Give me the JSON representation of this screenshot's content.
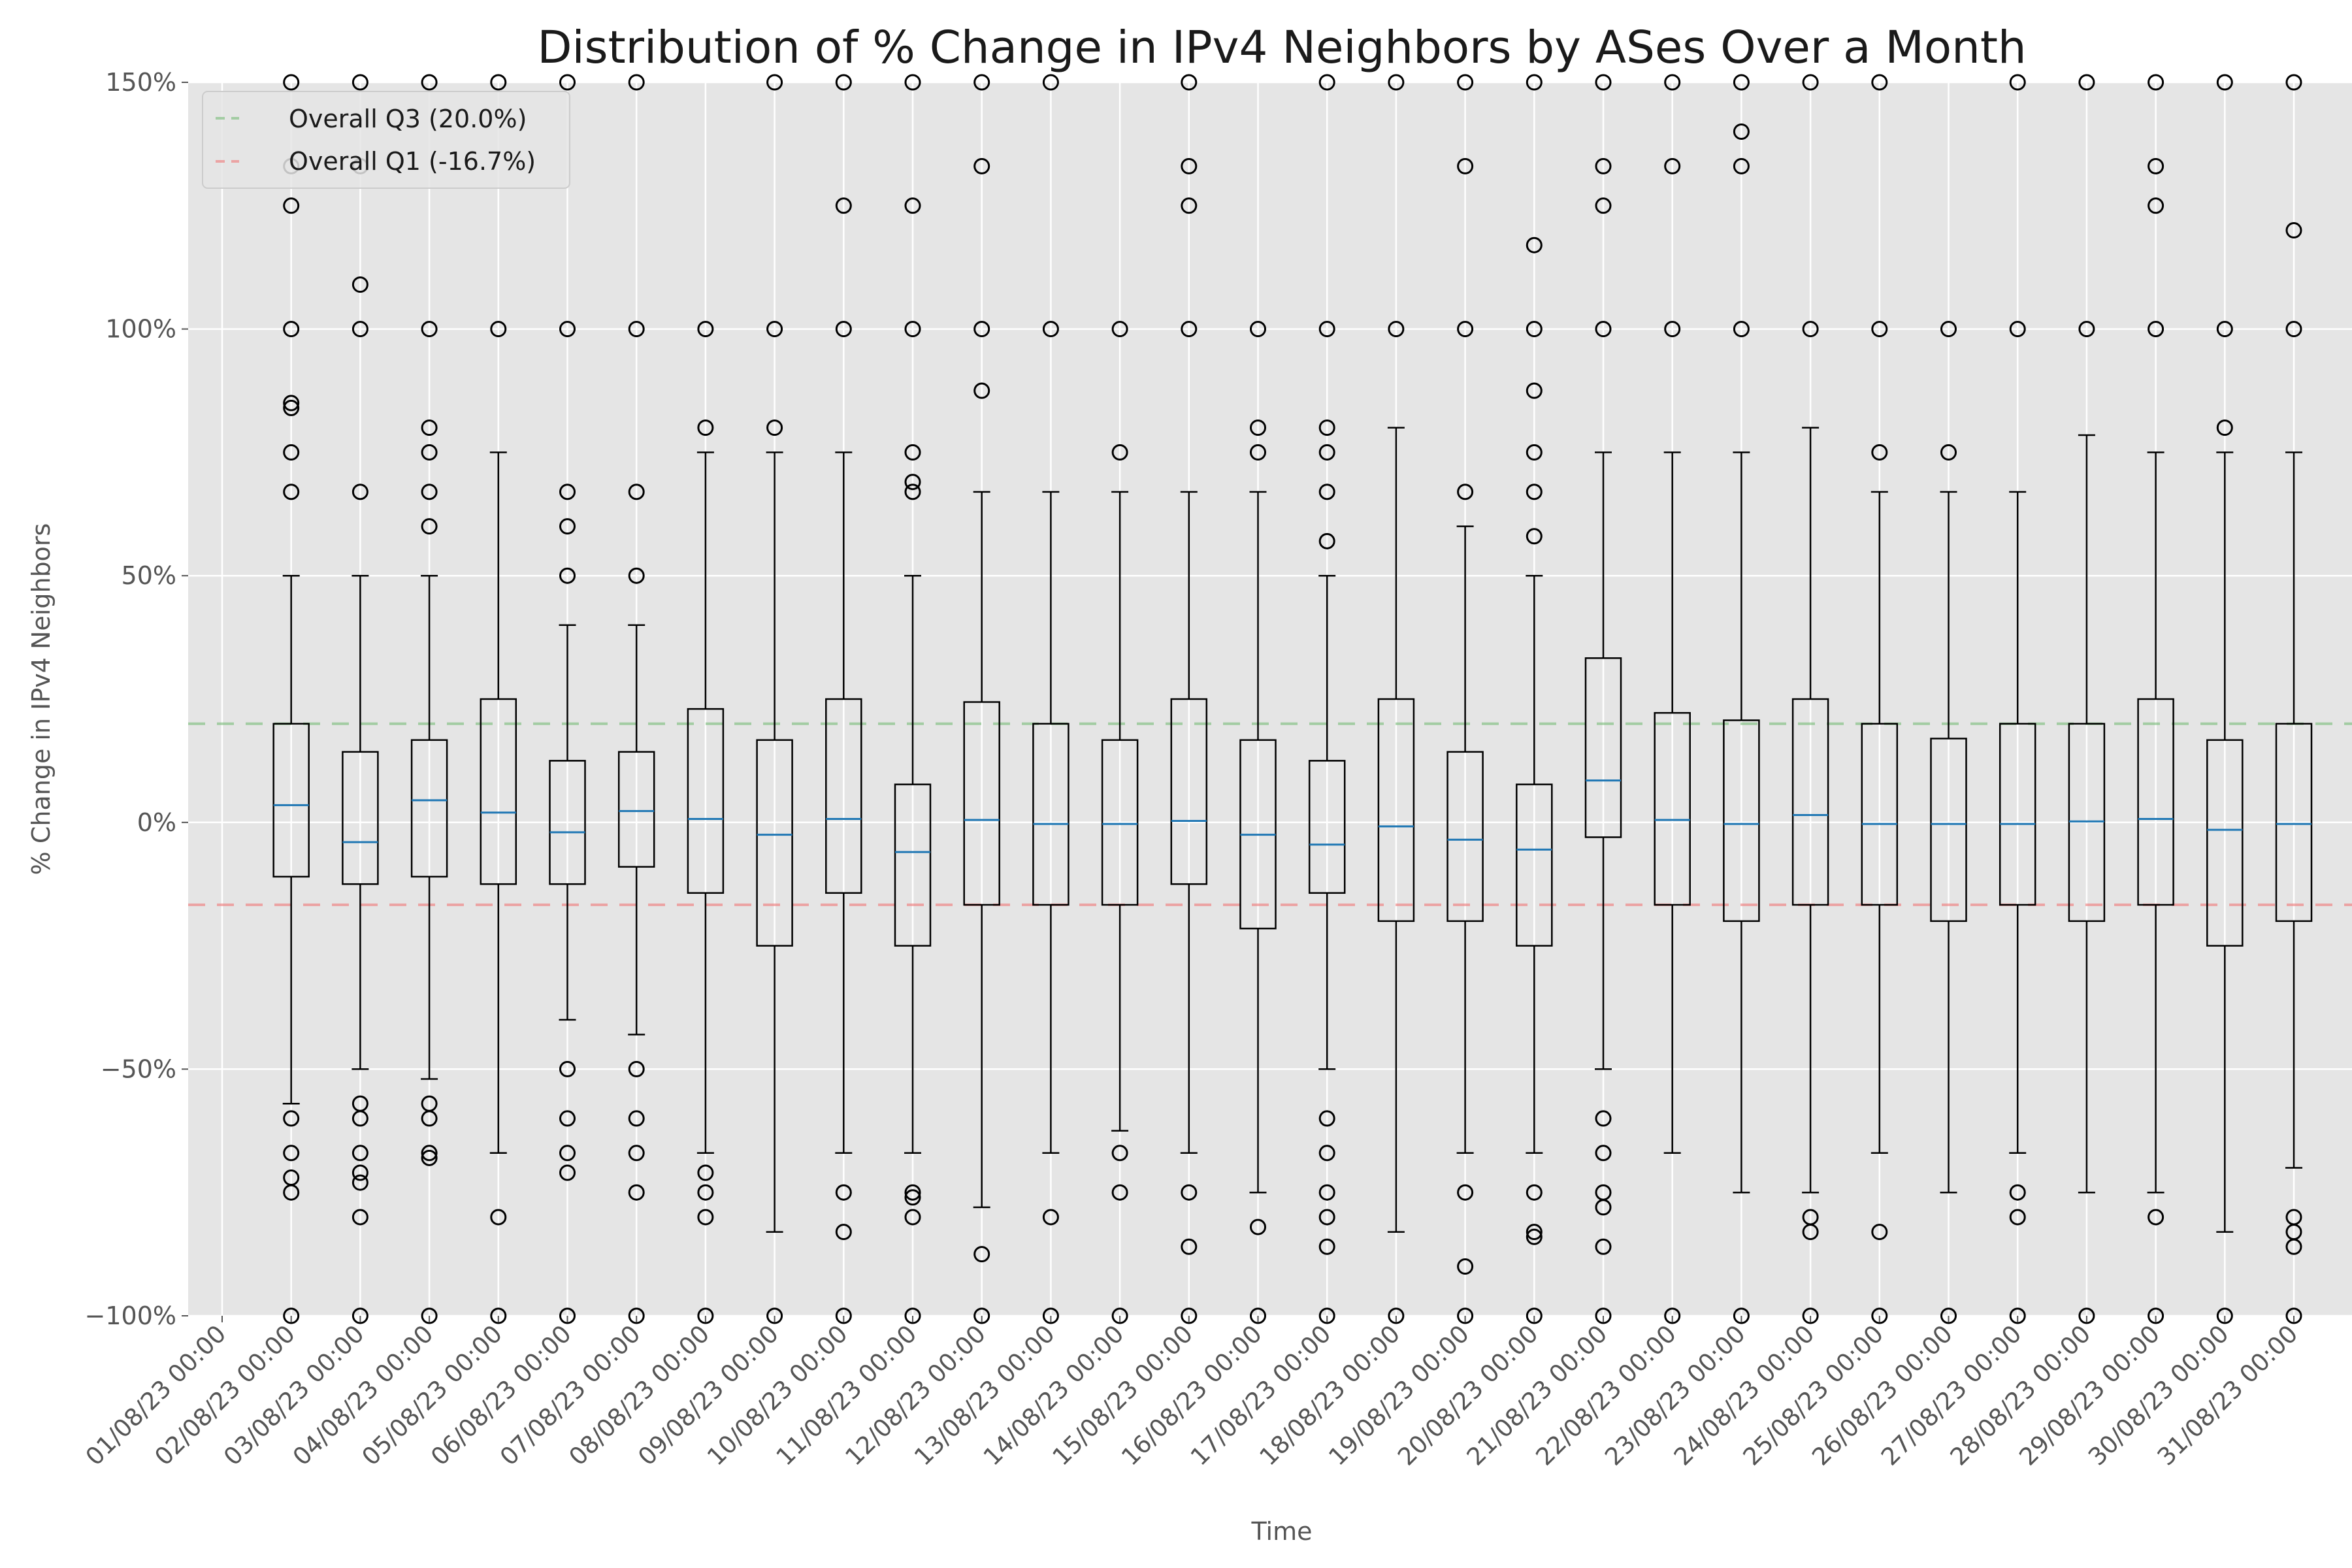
{
  "chart_data": {
    "type": "box",
    "title": "Distribution of % Change in IPv4 Neighbors by ASes Over a Month",
    "xlabel": "Time",
    "ylabel": "% Change in IPv4 Neighbors",
    "ylim": [
      -100,
      150
    ],
    "yticks": [
      -100,
      -50,
      0,
      50,
      100,
      150
    ],
    "ytick_labels": [
      "−100%",
      "−50%",
      "0%",
      "50%",
      "100%",
      "150%"
    ],
    "grid": true,
    "legend_position": "top-left",
    "reference_lines": [
      {
        "name": "Overall Q3 (20.0%)",
        "value": 20.0,
        "color": "#77bb77"
      },
      {
        "name": "Overall Q1 (-16.7%)",
        "value": -16.7,
        "color": "#ee7777"
      }
    ],
    "categories": [
      "01/08/23 00:00",
      "02/08/23 00:00",
      "03/08/23 00:00",
      "04/08/23 00:00",
      "05/08/23 00:00",
      "06/08/23 00:00",
      "07/08/23 00:00",
      "08/08/23 00:00",
      "09/08/23 00:00",
      "10/08/23 00:00",
      "11/08/23 00:00",
      "12/08/23 00:00",
      "13/08/23 00:00",
      "14/08/23 00:00",
      "15/08/23 00:00",
      "16/08/23 00:00",
      "17/08/23 00:00",
      "18/08/23 00:00",
      "19/08/23 00:00",
      "20/08/23 00:00",
      "21/08/23 00:00",
      "22/08/23 00:00",
      "23/08/23 00:00",
      "24/08/23 00:00",
      "25/08/23 00:00",
      "26/08/23 00:00",
      "27/08/23 00:00",
      "28/08/23 00:00",
      "29/08/23 00:00",
      "30/08/23 00:00",
      "31/08/23 00:00"
    ],
    "boxes": [
      {
        "x": "02/08/23 00:00",
        "whislo": -57,
        "q1": -11,
        "med": 3.5,
        "q3": 20,
        "whishi": 50,
        "fliers": [
          150,
          133,
          125,
          100,
          85,
          84,
          75,
          67,
          -60,
          -67,
          -72,
          -75,
          -100
        ]
      },
      {
        "x": "03/08/23 00:00",
        "whislo": -50,
        "q1": -12.5,
        "med": -4,
        "q3": 14.3,
        "whishi": 50,
        "fliers": [
          150,
          133,
          109,
          100,
          67,
          -57,
          -60,
          -67,
          -71,
          -73,
          -80,
          -100
        ]
      },
      {
        "x": "04/08/23 00:00",
        "whislo": -52,
        "q1": -11,
        "med": 4.5,
        "q3": 16.7,
        "whishi": 50,
        "fliers": [
          150,
          100,
          80,
          75,
          67,
          60,
          -57,
          -60,
          -67,
          -68,
          -100
        ]
      },
      {
        "x": "05/08/23 00:00",
        "whislo": -67,
        "q1": -12.5,
        "med": 2,
        "q3": 25,
        "whishi": 75,
        "fliers": [
          150,
          100,
          -80,
          -100
        ]
      },
      {
        "x": "06/08/23 00:00",
        "whislo": -40,
        "q1": -12.5,
        "med": -2,
        "q3": 12.5,
        "whishi": 40,
        "fliers": [
          150,
          100,
          67,
          60,
          50,
          -50,
          -60,
          -67,
          -71,
          -100
        ]
      },
      {
        "x": "07/08/23 00:00",
        "whislo": -43,
        "q1": -9,
        "med": 2.3,
        "q3": 14.3,
        "whishi": 40,
        "fliers": [
          150,
          100,
          67,
          50,
          -50,
          -60,
          -67,
          -75,
          -100
        ]
      },
      {
        "x": "08/08/23 00:00",
        "whislo": -67,
        "q1": -14.3,
        "med": 0.7,
        "q3": 23,
        "whishi": 75,
        "fliers": [
          100,
          80,
          -71,
          -75,
          -80,
          -100
        ]
      },
      {
        "x": "09/08/23 00:00",
        "whislo": -83,
        "q1": -25,
        "med": -2.5,
        "q3": 16.7,
        "whishi": 75,
        "fliers": [
          150,
          100,
          80,
          -100
        ]
      },
      {
        "x": "10/08/23 00:00",
        "whislo": -67,
        "q1": -14.3,
        "med": 0.7,
        "q3": 25,
        "whishi": 75,
        "fliers": [
          150,
          125,
          100,
          -75,
          -83,
          -100
        ]
      },
      {
        "x": "11/08/23 00:00",
        "whislo": -67,
        "q1": -25,
        "med": -6,
        "q3": 7.7,
        "whishi": 50,
        "fliers": [
          150,
          125,
          100,
          75,
          69,
          67,
          -75,
          -76,
          -80,
          -100
        ]
      },
      {
        "x": "12/08/23 00:00",
        "whislo": -78,
        "q1": -16.7,
        "med": 0.5,
        "q3": 24.4,
        "whishi": 67,
        "fliers": [
          150,
          133,
          100,
          87.5,
          -87.5,
          -100
        ]
      },
      {
        "x": "13/08/23 00:00",
        "whislo": -67,
        "q1": -16.7,
        "med": -0.3,
        "q3": 20,
        "whishi": 67,
        "fliers": [
          150,
          100,
          -80,
          -100
        ]
      },
      {
        "x": "14/08/23 00:00",
        "whislo": -62.5,
        "q1": -16.7,
        "med": -0.3,
        "q3": 16.7,
        "whishi": 67,
        "fliers": [
          100,
          75,
          -67,
          -75,
          -100
        ]
      },
      {
        "x": "15/08/23 00:00",
        "whislo": -67,
        "q1": -12.5,
        "med": 0.3,
        "q3": 25,
        "whishi": 67,
        "fliers": [
          150,
          133,
          125,
          100,
          -75,
          -86,
          -100
        ]
      },
      {
        "x": "16/08/23 00:00",
        "whislo": -75,
        "q1": -21.5,
        "med": -2.5,
        "q3": 16.7,
        "whishi": 67,
        "fliers": [
          100,
          80,
          75,
          -82,
          -100
        ]
      },
      {
        "x": "17/08/23 00:00",
        "whislo": -50,
        "q1": -14.3,
        "med": -4.5,
        "q3": 12.5,
        "whishi": 50,
        "fliers": [
          150,
          100,
          80,
          75,
          67,
          57,
          -60,
          -67,
          -75,
          -80,
          -86,
          -100
        ]
      },
      {
        "x": "18/08/23 00:00",
        "whislo": -83,
        "q1": -20,
        "med": -0.8,
        "q3": 25,
        "whishi": 80,
        "fliers": [
          150,
          100,
          -100
        ]
      },
      {
        "x": "19/08/23 00:00",
        "whislo": -67,
        "q1": -20,
        "med": -3.5,
        "q3": 14.3,
        "whishi": 60,
        "fliers": [
          150,
          133,
          100,
          67,
          -75,
          -90,
          -100
        ]
      },
      {
        "x": "20/08/23 00:00",
        "whislo": -67,
        "q1": -25,
        "med": -5.5,
        "q3": 7.7,
        "whishi": 50,
        "fliers": [
          150,
          117,
          100,
          87.5,
          75,
          67,
          58,
          -75,
          -83,
          -84,
          -100
        ]
      },
      {
        "x": "21/08/23 00:00",
        "whislo": -50,
        "q1": -3,
        "med": 8.5,
        "q3": 33.3,
        "whishi": 75,
        "fliers": [
          150,
          133,
          125,
          100,
          -60,
          -67,
          -75,
          -78,
          -86,
          -100
        ]
      },
      {
        "x": "22/08/23 00:00",
        "whislo": -67,
        "q1": -16.7,
        "med": 0.5,
        "q3": 22.2,
        "whishi": 75,
        "fliers": [
          150,
          133,
          100,
          -100
        ]
      },
      {
        "x": "23/08/23 00:00",
        "whislo": -75,
        "q1": -20,
        "med": -0.3,
        "q3": 20.7,
        "whishi": 75,
        "fliers": [
          150,
          140,
          133,
          100,
          -100
        ]
      },
      {
        "x": "24/08/23 00:00",
        "whislo": -75,
        "q1": -16.7,
        "med": 1.5,
        "q3": 25,
        "whishi": 80,
        "fliers": [
          150,
          100,
          -80,
          -83,
          -100
        ]
      },
      {
        "x": "25/08/23 00:00",
        "whislo": -67,
        "q1": -16.7,
        "med": -0.3,
        "q3": 20,
        "whishi": 67,
        "fliers": [
          150,
          100,
          75,
          -83,
          -100
        ]
      },
      {
        "x": "26/08/23 00:00",
        "whislo": -75,
        "q1": -20,
        "med": -0.3,
        "q3": 17,
        "whishi": 67,
        "fliers": [
          100,
          75,
          -100
        ]
      },
      {
        "x": "27/08/23 00:00",
        "whislo": -67,
        "q1": -16.7,
        "med": -0.3,
        "q3": 20,
        "whishi": 67,
        "fliers": [
          150,
          100,
          -75,
          -80,
          -100
        ]
      },
      {
        "x": "28/08/23 00:00",
        "whislo": -75,
        "q1": -20,
        "med": 0.2,
        "q3": 20,
        "whishi": 78.5,
        "fliers": [
          150,
          100,
          -100
        ]
      },
      {
        "x": "29/08/23 00:00",
        "whislo": -75,
        "q1": -16.7,
        "med": 0.7,
        "q3": 25,
        "whishi": 75,
        "fliers": [
          150,
          133,
          125,
          100,
          -80,
          -100
        ]
      },
      {
        "x": "30/08/23 00:00",
        "whislo": -83,
        "q1": -25,
        "med": -1.5,
        "q3": 16.7,
        "whishi": 75,
        "fliers": [
          150,
          100,
          80,
          -100
        ]
      },
      {
        "x": "31/08/23 00:00",
        "whislo": -70,
        "q1": -20,
        "med": -0.3,
        "q3": 20,
        "whishi": 75,
        "fliers": [
          150,
          120,
          100,
          -80,
          -83,
          -86,
          -100
        ]
      }
    ]
  }
}
